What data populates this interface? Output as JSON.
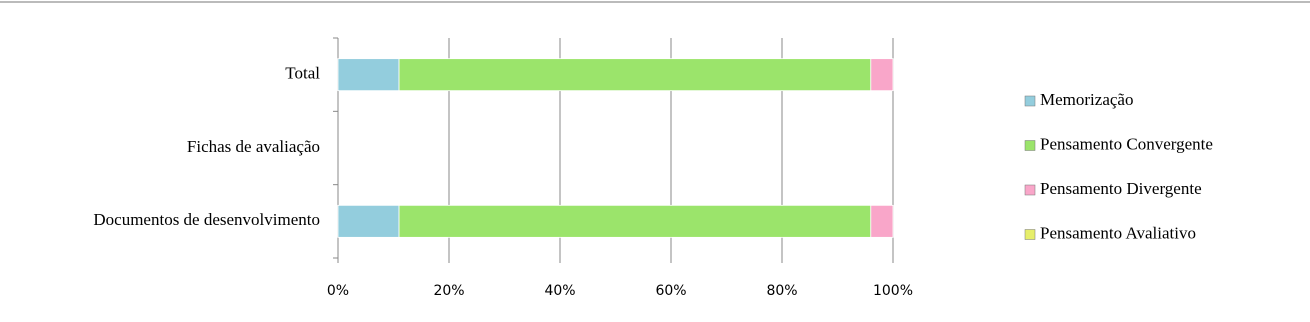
{
  "chart_data": {
    "type": "stacked-barh",
    "categories": [
      "Documentos de desenvolvimento",
      "Fichas de avaliação",
      "Total"
    ],
    "series": [
      {
        "name": "Memorização",
        "color": "#93cddd",
        "values": [
          11,
          null,
          11
        ]
      },
      {
        "name": "Pensamento Convergente",
        "color": "#9be46b",
        "values": [
          85,
          null,
          85
        ]
      },
      {
        "name": "Pensamento Divergente",
        "color": "#f9a6c9",
        "values": [
          4,
          null,
          4
        ]
      },
      {
        "name": "Pensamento Avaliativo",
        "color": "#e6ee6a",
        "values": [
          0,
          null,
          0
        ]
      }
    ],
    "xlim": [
      0,
      100
    ],
    "xticks": [
      {
        "value": 0,
        "label": "0%"
      },
      {
        "value": 20,
        "label": "20%"
      },
      {
        "value": 40,
        "label": "40%"
      },
      {
        "value": 60,
        "label": "60%"
      },
      {
        "value": 80,
        "label": "80%"
      },
      {
        "value": 100,
        "label": "100%"
      }
    ],
    "grid": true
  }
}
